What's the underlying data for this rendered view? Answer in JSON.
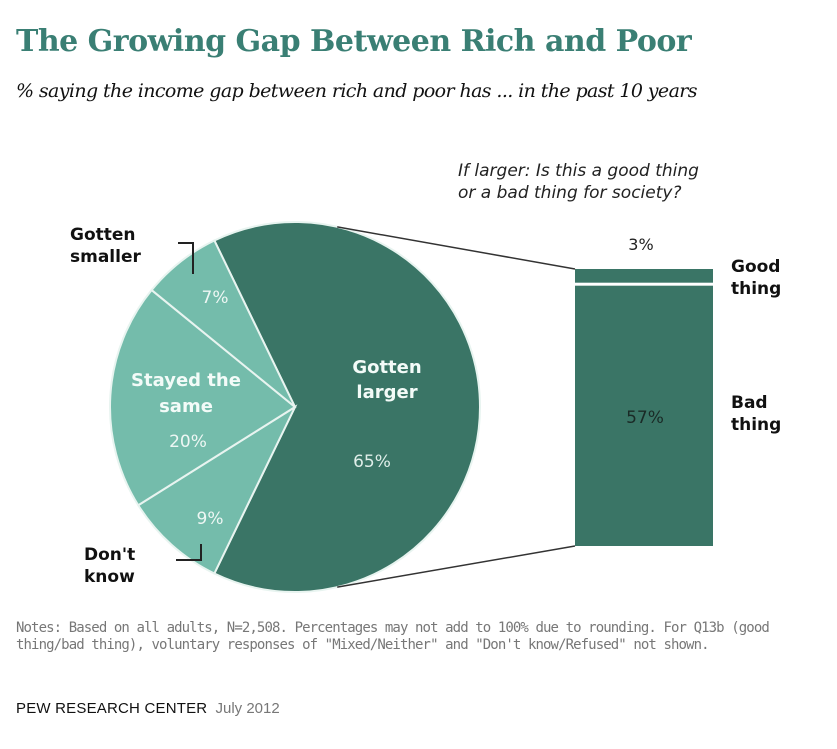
{
  "header": {
    "title": "The Growing Gap Between Rich and Poor",
    "subtitle": "% saying the income gap between rich and poor  has ... in the past 10 years"
  },
  "colors": {
    "title": "#3a7f74",
    "dark_green": "#3a7566",
    "light_green": "#74bcab",
    "separator": "#e8f4f0",
    "connector": "#333333"
  },
  "chart_data": [
    {
      "type": "pie",
      "title": "% saying the income gap between rich and poor has ... in the past 10 years",
      "slices": [
        {
          "label": "Gotten larger",
          "value": 65,
          "display": "65%",
          "color": "#3a7566",
          "label_inside": true
        },
        {
          "label": "Don't know",
          "value": 9,
          "display": "9%",
          "color": "#74bcab",
          "label_inside": false
        },
        {
          "label": "Stayed the same",
          "value": 20,
          "display": "20%",
          "color": "#74bcab",
          "label_inside": true
        },
        {
          "label": "Gotten smaller",
          "value": 7,
          "display": "7%",
          "color": "#74bcab",
          "label_inside": false
        }
      ]
    },
    {
      "type": "bar",
      "title": "If larger: Is this a good thing or a bad thing for society?",
      "stacked": true,
      "categories": [
        "Good thing",
        "Bad thing"
      ],
      "values": [
        3,
        57
      ],
      "display": [
        "3%",
        "57%"
      ],
      "color": "#3a7566"
    }
  ],
  "labels": {
    "pie_inside_larger_line1": "Gotten",
    "pie_inside_larger_line2": "larger",
    "pie_inside_larger_value": "65%",
    "pie_inside_same_line1": "Stayed the",
    "pie_inside_same_line2": "same",
    "pie_inside_same_value": "20%",
    "pie_smaller_value": "7%",
    "pie_dontknow_value": "9%",
    "outer_smaller_line1": "Gotten",
    "outer_smaller_line2": "smaller",
    "outer_dontknow_line1": "Don't",
    "outer_dontknow_line2": "know",
    "bar_question_line1": "If larger: Is this a good thing",
    "bar_question_line2": "or a bad thing for society?",
    "bar_good_value": "3%",
    "bar_bad_value": "57%",
    "bar_good_line1": "Good",
    "bar_good_line2": "thing",
    "bar_bad_line1": "Bad",
    "bar_bad_line2": "thing"
  },
  "footer": {
    "notes": "Notes: Based on all adults, N=2,508. Percentages may not add to 100% due to rounding. For Q13b (good thing/bad thing), voluntary responses of \"Mixed/Neither\" and \"Don't know/Refused\" not shown.",
    "source_org": "PEW RESEARCH  CENTER",
    "source_date": "July 2012"
  }
}
